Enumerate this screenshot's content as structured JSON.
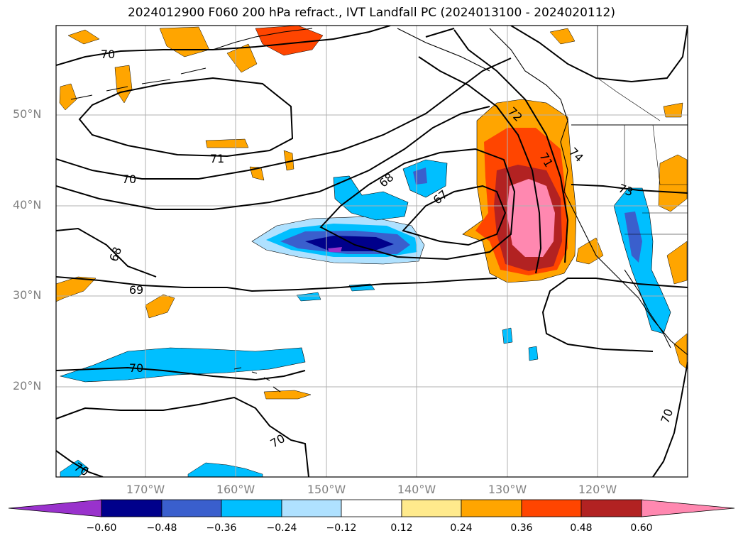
{
  "title": "2024012900 F060 200 hPa refract., IVT Landfall PC (2024013100 - 2024020112)",
  "lat_labels": [
    "50°N",
    "40°N",
    "30°N",
    "20°N"
  ],
  "lon_labels": [
    "170°W",
    "160°W",
    "150°W",
    "140°W",
    "130°W",
    "120°W"
  ],
  "contour_labels": [
    "70",
    "71",
    "70",
    "68",
    "69",
    "70",
    "70",
    "70",
    "68",
    "67",
    "72",
    "74",
    "73",
    "71",
    "70"
  ],
  "colorbar": {
    "ticks": [
      "−0.60",
      "−0.48",
      "−0.36",
      "−0.24",
      "−0.12",
      "0.12",
      "0.24",
      "0.36",
      "0.48",
      "0.60"
    ],
    "colors": [
      "#9932cc",
      "#00008b",
      "#3a5fcd",
      "#00bfff",
      "#afe1ff",
      "#ffffff",
      "#ffea8c",
      "#ffa500",
      "#ff4500",
      "#b22222",
      "#ff88b0"
    ]
  },
  "colors": {
    "grid": "#b0b0b0",
    "contour": "#000000",
    "axis_label": "#808080"
  }
}
